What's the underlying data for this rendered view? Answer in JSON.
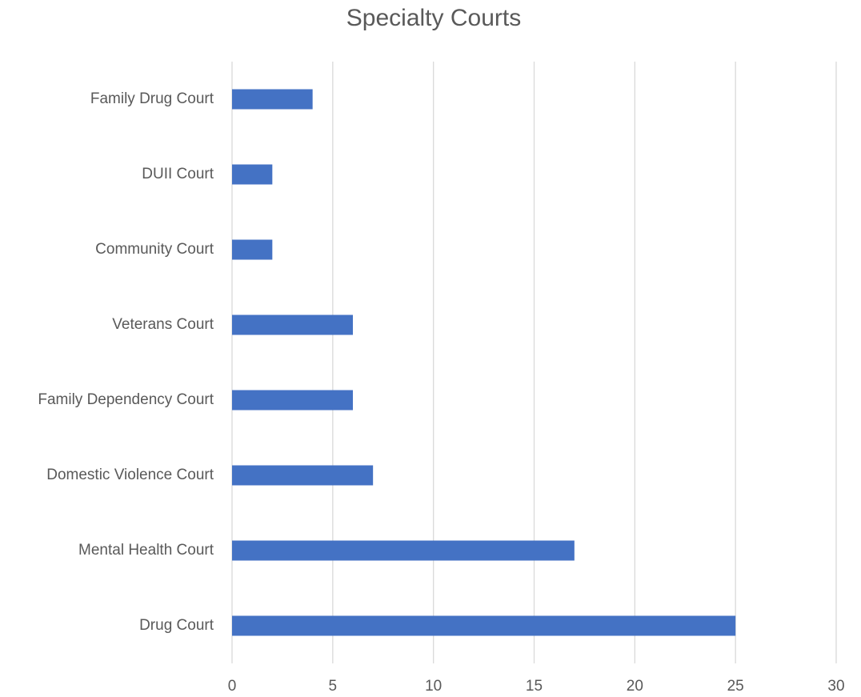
{
  "chart_data": {
    "type": "bar",
    "orientation": "horizontal",
    "title": "Specialty Courts",
    "categories": [
      "Drug Court",
      "Mental Health Court",
      "Domestic Violence Court",
      "Family Dependency Court",
      "Veterans Court",
      "Community Court",
      "DUII Court",
      "Family Drug Court"
    ],
    "values": [
      25,
      17,
      7,
      6,
      6,
      2,
      2,
      4
    ],
    "color": "#4472c4",
    "xlim": [
      0,
      30
    ],
    "xticks": [
      0,
      5,
      10,
      15,
      20,
      25,
      30
    ],
    "grid": true
  }
}
